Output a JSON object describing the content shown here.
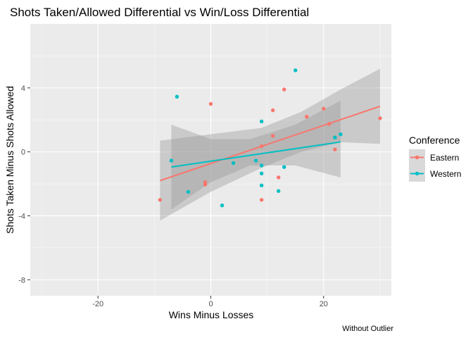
{
  "chart_data": {
    "type": "scatter",
    "title": "Shots Taken/Allowed Differential vs Win/Loss Differential",
    "xlabel": "Wins Minus Losses",
    "ylabel": "Shots Taken Minus Shots Allowed",
    "caption": "Without Outlier",
    "xlim": [
      -32,
      32
    ],
    "ylim": [
      -9,
      8
    ],
    "x_ticks": [
      -20,
      0,
      20
    ],
    "y_ticks": [
      -8,
      -4,
      0,
      4
    ],
    "x_tick_labels": [
      "-20",
      "0",
      "20"
    ],
    "y_tick_labels": [
      "-8",
      "-4",
      "0",
      "4"
    ],
    "grid": true,
    "legend": {
      "title": "Conference",
      "position": "right"
    },
    "series": [
      {
        "name": "Eastern",
        "color": "#F8766D",
        "points": [
          [
            -9,
            -3.0
          ],
          [
            -1,
            -1.9
          ],
          [
            -1,
            -2.05
          ],
          [
            0,
            3.0
          ],
          [
            9,
            0.35
          ],
          [
            9,
            -3.0
          ],
          [
            11,
            2.6
          ],
          [
            11,
            1.0
          ],
          [
            12,
            -1.6
          ],
          [
            13,
            3.9
          ],
          [
            17,
            2.2
          ],
          [
            20,
            2.7
          ],
          [
            21,
            1.75
          ],
          [
            22,
            0.15
          ],
          [
            30,
            2.1
          ]
        ],
        "fit": {
          "x": [
            -9,
            30
          ],
          "y": [
            -1.8,
            2.85
          ]
        },
        "ci": [
          {
            "x": -9,
            "lo": -4.3,
            "hi": 0.7
          },
          {
            "x": 0,
            "lo": -2.5,
            "hi": 1.1
          },
          {
            "x": 9,
            "lo": -1.0,
            "hi": 1.5
          },
          {
            "x": 16,
            "lo": 0.0,
            "hi": 2.5
          },
          {
            "x": 23,
            "lo": 0.6,
            "hi": 3.9
          },
          {
            "x": 30,
            "lo": 0.5,
            "hi": 5.2
          }
        ]
      },
      {
        "name": "Western",
        "color": "#00BFC4",
        "points": [
          [
            -7,
            -0.55
          ],
          [
            -6,
            3.45
          ],
          [
            -4,
            -2.5
          ],
          [
            2,
            -3.35
          ],
          [
            4,
            -0.7
          ],
          [
            8,
            -0.55
          ],
          [
            9,
            1.9
          ],
          [
            9,
            -0.85
          ],
          [
            9,
            -1.35
          ],
          [
            9,
            -2.1
          ],
          [
            12,
            -2.45
          ],
          [
            13,
            -0.95
          ],
          [
            15,
            5.1
          ],
          [
            22,
            0.9
          ],
          [
            23,
            1.1
          ]
        ],
        "fit": {
          "x": [
            -7,
            23
          ],
          "y": [
            -0.95,
            0.62
          ]
        },
        "ci": [
          {
            "x": -7,
            "lo": -3.6,
            "hi": 1.7
          },
          {
            "x": 0,
            "lo": -1.9,
            "hi": 0.8
          },
          {
            "x": 7,
            "lo": -0.85,
            "hi": 0.8
          },
          {
            "x": 15,
            "lo": -0.85,
            "hi": 1.7
          },
          {
            "x": 23,
            "lo": -1.6,
            "hi": 3.2
          }
        ]
      }
    ]
  }
}
